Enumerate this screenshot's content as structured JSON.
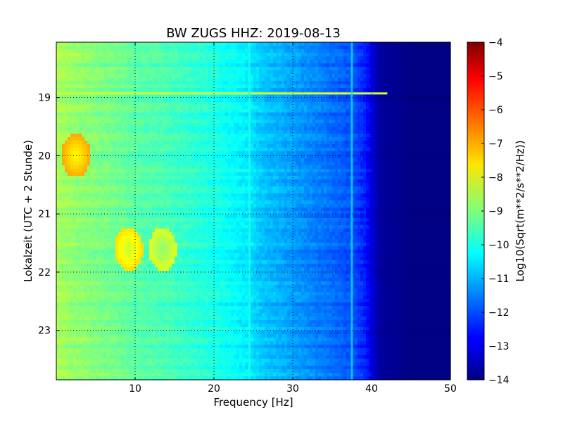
{
  "chart_data": {
    "type": "heatmap",
    "title": "BW ZUGS HHZ: 2019-08-13",
    "xlabel": "Frequency [Hz]",
    "ylabel": "Lokalzeit (UTC + 2 Stunde)",
    "xlim": [
      0,
      50
    ],
    "ylim": [
      23.85,
      18.05
    ],
    "y_inverted": true,
    "x_ticks": [
      10,
      20,
      30,
      40,
      50
    ],
    "y_ticks": [
      19,
      20,
      21,
      22,
      23
    ],
    "grid": true,
    "colormap": "jet",
    "colorbar": {
      "label": "Log10(Sqrt(m**2/s**2/Hz))",
      "range": [
        -14,
        -4
      ],
      "ticks": [
        -4,
        -5,
        -6,
        -7,
        -8,
        -9,
        -10,
        -11,
        -12,
        -13,
        -14
      ]
    },
    "spectrum_profile": {
      "frequency_hz": [
        0,
        2,
        5,
        8,
        10,
        13,
        16,
        20,
        24,
        26,
        30,
        33,
        36,
        38,
        39,
        40,
        41,
        45,
        50
      ],
      "level": [
        -8.6,
        -8.8,
        -9.0,
        -9.2,
        -9.4,
        -9.5,
        -9.7,
        -10.0,
        -10.4,
        -10.8,
        -11.2,
        -11.5,
        -11.8,
        -12.1,
        -12.4,
        -13.0,
        -13.7,
        -13.95,
        -13.95
      ]
    },
    "features": [
      {
        "kind": "horizontal-line",
        "time": 18.93,
        "freq_range": [
          0,
          42
        ],
        "level": -8.2
      },
      {
        "kind": "vertical-line",
        "freq": 24.5,
        "level": -10.0
      },
      {
        "kind": "vertical-line",
        "freq": 37.5,
        "level": -10.6
      },
      {
        "kind": "blob",
        "freq": 9.2,
        "time": 21.6,
        "level": -8.3
      },
      {
        "kind": "blob",
        "freq": 13.5,
        "time": 21.6,
        "level": -8.9
      },
      {
        "kind": "blob",
        "freq": 2.5,
        "time": 20.0,
        "level": -7.8
      }
    ]
  }
}
